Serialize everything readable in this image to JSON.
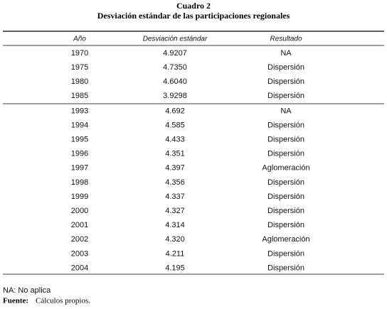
{
  "header": {
    "label": "Cuadro 2",
    "title": "Desviación estándar de las participaciones regionales"
  },
  "table": {
    "columns": [
      "Año",
      "Desviación estándar",
      "Resultado"
    ],
    "rows": [
      [
        "1970",
        "4.9207",
        "NA"
      ],
      [
        "1975",
        "4.7350",
        "Dispersión"
      ],
      [
        "1980",
        "4.6040",
        "Dispersión"
      ],
      [
        "1985",
        "3.9298",
        "Dispersión"
      ],
      [
        "1993",
        "4.692",
        "NA"
      ],
      [
        "1994",
        "4.585",
        "Dispersión"
      ],
      [
        "1995",
        "4.433",
        "Dispersión"
      ],
      [
        "1996",
        "4.351",
        "Dispersión"
      ],
      [
        "1997",
        "4.397",
        "Aglomeración"
      ],
      [
        "1998",
        "4.356",
        "Dispersión"
      ],
      [
        "1999",
        "4.337",
        "Dispersión"
      ],
      [
        "2000",
        "4.327",
        "Dispersión"
      ],
      [
        "2001",
        "4.314",
        "Dispersión"
      ],
      [
        "2002",
        "4.320",
        "Aglomeración"
      ],
      [
        "2003",
        "4.211",
        "Dispersión"
      ],
      [
        "2004",
        "4.195",
        "Dispersión"
      ]
    ]
  },
  "footer": {
    "note": "NA: No aplica",
    "source_label": "Fuente:",
    "source_text": "Cálculos propios."
  }
}
